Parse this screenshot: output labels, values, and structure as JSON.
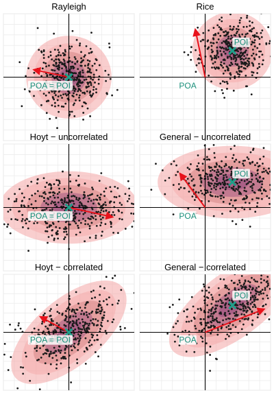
{
  "chart_data": [
    {
      "type": "scatter",
      "title": "Rayleigh",
      "xlim": [
        -6,
        6
      ],
      "ylim": [
        -6,
        6
      ],
      "grid": true,
      "n_points": 400,
      "seed": 11,
      "center": [
        0,
        0
      ],
      "sd": [
        1.6,
        1.6
      ],
      "corr": 0,
      "poi": [
        0,
        0
      ],
      "arrows": [
        {
          "from": [
            0,
            0
          ],
          "to": [
            -3.2,
            0.7
          ]
        }
      ],
      "labels": [
        {
          "text": "POA = POI",
          "at": [
            -1.7,
            -1.0
          ]
        }
      ]
    },
    {
      "type": "scatter",
      "title": "Rice",
      "xlim": [
        -6,
        6
      ],
      "ylim": [
        -6,
        6
      ],
      "grid": true,
      "n_points": 400,
      "seed": 23,
      "center": [
        2.5,
        2.5
      ],
      "sd": [
        1.5,
        1.5
      ],
      "corr": 0,
      "poi": [
        2.5,
        2.5
      ],
      "arrows": [
        {
          "from": [
            0,
            0
          ],
          "to": [
            -0.9,
            4.5
          ]
        }
      ],
      "labels": [
        {
          "text": "POI",
          "at": [
            3.3,
            3.1
          ]
        },
        {
          "text": "POA",
          "at": [
            -1.6,
            -1.0
          ]
        }
      ]
    },
    {
      "type": "scatter",
      "title": "Hoyt − uncorrelated",
      "xlim": [
        -6,
        6
      ],
      "ylim": [
        -6,
        6
      ],
      "grid": true,
      "n_points": 400,
      "seed": 37,
      "center": [
        0,
        0
      ],
      "sd": [
        2.6,
        1.4
      ],
      "corr": 0,
      "poi": [
        0,
        0
      ],
      "arrows": [
        {
          "from": [
            0,
            0
          ],
          "to": [
            4.0,
            -0.9
          ]
        }
      ],
      "labels": [
        {
          "text": "POA = POI",
          "at": [
            -1.7,
            -1.0
          ]
        }
      ]
    },
    {
      "type": "scatter",
      "title": "General − uncorrelated",
      "xlim": [
        -6,
        6
      ],
      "ylim": [
        -6,
        6
      ],
      "grid": true,
      "n_points": 400,
      "seed": 53,
      "center": [
        2.5,
        2.4
      ],
      "sd": [
        2.8,
        1.4
      ],
      "corr": 0,
      "poi": [
        2.5,
        2.4
      ],
      "arrows": [
        {
          "from": [
            0,
            0
          ],
          "to": [
            -2.3,
            3.2
          ]
        }
      ],
      "labels": [
        {
          "text": "POI",
          "at": [
            3.3,
            3.0
          ]
        },
        {
          "text": "POA",
          "at": [
            -1.6,
            -1.0
          ]
        }
      ]
    },
    {
      "type": "scatter",
      "title": "Hoyt − correlated",
      "xlim": [
        -6,
        6
      ],
      "ylim": [
        -6,
        6
      ],
      "grid": true,
      "n_points": 400,
      "seed": 71,
      "center": [
        0,
        0
      ],
      "sd": [
        2.2,
        2.0
      ],
      "corr": 0.55,
      "poi": [
        0,
        0
      ],
      "arrows": [
        {
          "from": [
            0,
            0
          ],
          "to": [
            -2.6,
            1.6
          ]
        }
      ],
      "labels": [
        {
          "text": "POA = POI",
          "at": [
            -1.7,
            -1.0
          ]
        }
      ]
    },
    {
      "type": "scatter",
      "title": "General − correlated",
      "xlim": [
        -6,
        6
      ],
      "ylim": [
        -6,
        6
      ],
      "grid": true,
      "n_points": 400,
      "seed": 89,
      "center": [
        2.5,
        2.8
      ],
      "sd": [
        2.4,
        2.0
      ],
      "corr": 0.6,
      "poi": [
        2.5,
        2.8
      ],
      "arrows": [
        {
          "from": [
            0,
            0
          ],
          "to": [
            5.4,
            2.4
          ]
        }
      ],
      "labels": [
        {
          "text": "POI",
          "at": [
            3.3,
            3.6
          ]
        },
        {
          "text": "POA",
          "at": [
            -1.6,
            -1.0
          ]
        }
      ]
    }
  ],
  "colors": {
    "points": "#1a1a1a",
    "arrow": "#e8121b",
    "poi_marker": "#1f9e89",
    "label_text": "#1a8f7a",
    "ring_outer": "#f4a6a6",
    "ring_inner": "#6a1b6a",
    "grid": "#ececec"
  }
}
